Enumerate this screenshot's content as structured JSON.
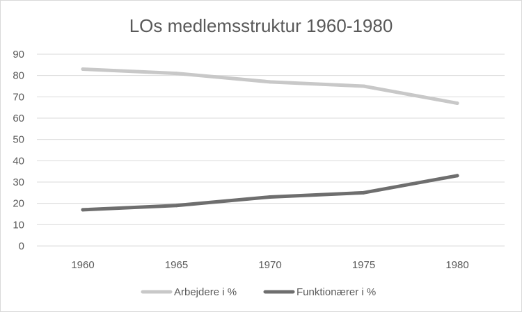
{
  "chart_data": {
    "type": "line",
    "title": "LOs medlemsstruktur 1960-1980",
    "xlabel": "",
    "ylabel": "",
    "categories": [
      "1960",
      "1965",
      "1970",
      "1975",
      "1980"
    ],
    "ylim": [
      0,
      90
    ],
    "yticks": [
      0,
      10,
      20,
      30,
      40,
      50,
      60,
      70,
      80,
      90
    ],
    "grid": true,
    "legend_position": "bottom",
    "series": [
      {
        "name": "Arbejdere i %",
        "values": [
          83,
          81,
          77,
          75,
          67
        ],
        "color": "#c8c8c8"
      },
      {
        "name": "Funktionærer i %",
        "values": [
          17,
          19,
          23,
          25,
          33
        ],
        "color": "#6e6e6e"
      }
    ]
  }
}
